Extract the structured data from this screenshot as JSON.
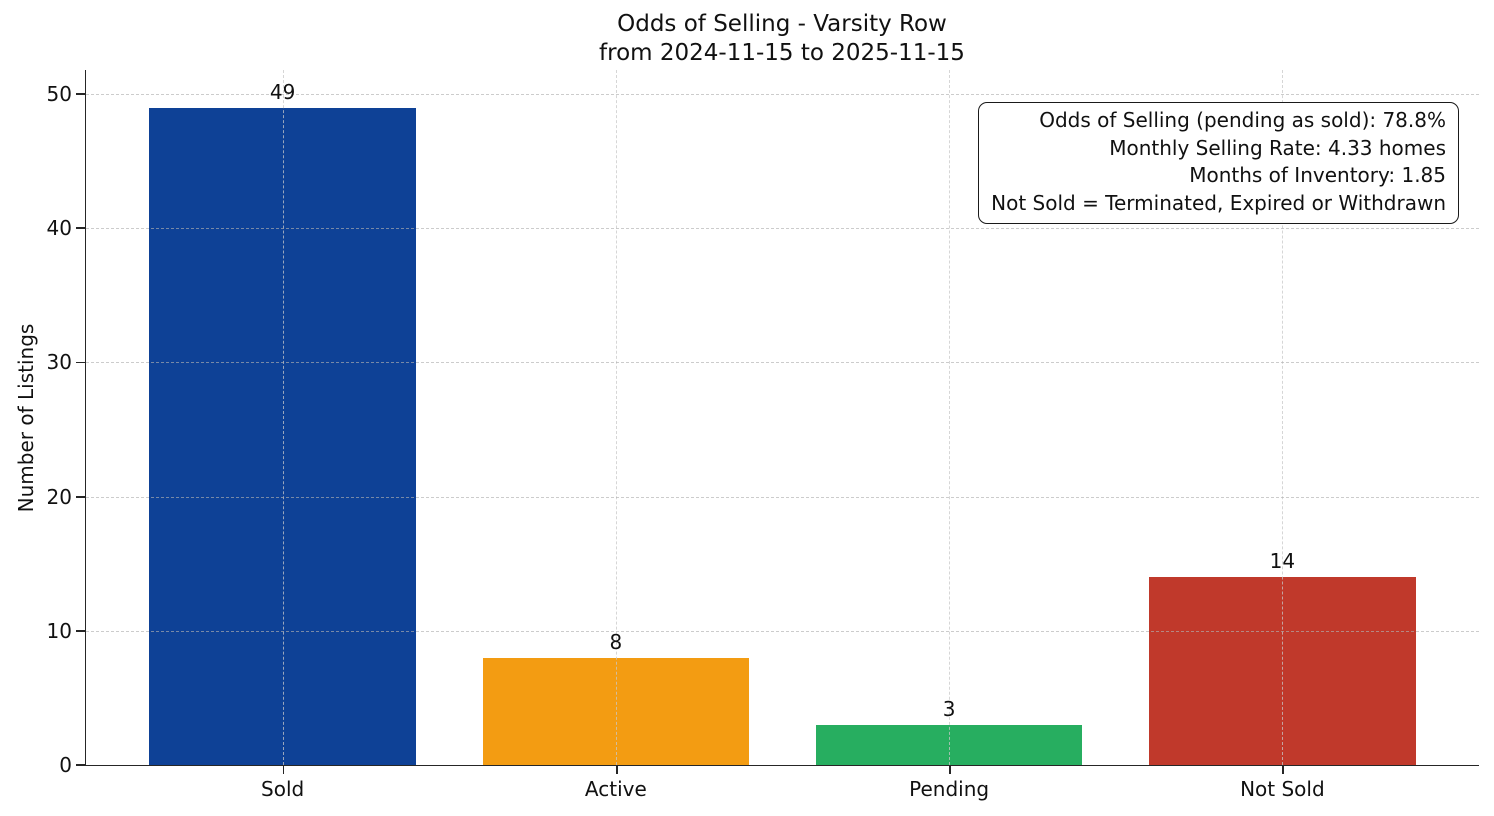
{
  "chart_data": {
    "type": "bar",
    "title": "Odds of Selling - Varsity Row",
    "subtitle": "from 2024-11-15 to 2025-11-15",
    "xlabel": "",
    "ylabel": "Number of Listings",
    "categories": [
      "Sold",
      "Active",
      "Pending",
      "Not Sold"
    ],
    "values": [
      49,
      8,
      3,
      14
    ],
    "value_labels": [
      "49",
      "8",
      "3",
      "14"
    ],
    "bar_colors": [
      "#0e4196",
      "#f39c12",
      "#27ae60",
      "#c0392b"
    ],
    "yticks": [
      0,
      10,
      20,
      30,
      40,
      50
    ],
    "ytick_labels": [
      "0",
      "10",
      "20",
      "30",
      "40",
      "50"
    ],
    "ylim": [
      0,
      51.8
    ],
    "grid": "dashed-both-axes-over-bars",
    "legend": "none",
    "spines": "left-bottom-only",
    "grid_color": "#b0b0b0",
    "axis_color": "#262626",
    "text_color": "#111111",
    "background_color": "#ffffff",
    "annotation": {
      "position": "top-right",
      "align": "right",
      "lines": [
        "Odds of Selling (pending as sold): 78.8%",
        "Monthly Selling Rate: 4.33 homes",
        "Months of Inventory: 1.85",
        "Not Sold = Terminated, Expired or Withdrawn"
      ]
    }
  }
}
